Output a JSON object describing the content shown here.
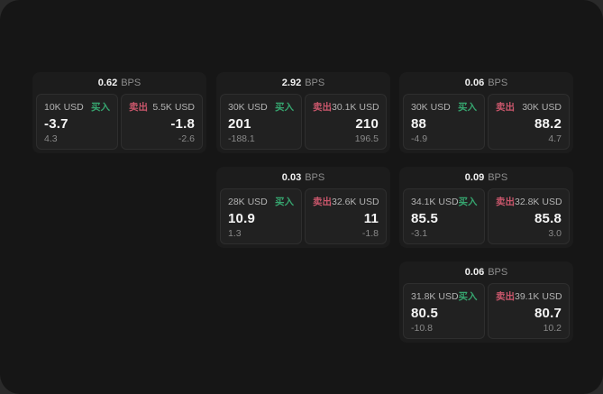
{
  "labels": {
    "bps_unit": "BPS",
    "buy": "买入",
    "sell": "卖出"
  },
  "colors": {
    "buy_green": "#36a56f",
    "sell_red": "#c9566b",
    "window_bg": "#161616",
    "card_bg": "#1c1c1c",
    "panel_bg": "#212121"
  },
  "cards": [
    {
      "bps": "0.62",
      "buy": {
        "amount": "10K USD",
        "price": "-3.7",
        "sub": "4.3"
      },
      "sell": {
        "amount": "5.5K USD",
        "price": "-1.8",
        "sub": "-2.6"
      }
    },
    {
      "bps": "2.92",
      "buy": {
        "amount": "30K USD",
        "price": "201",
        "sub": "-188.1"
      },
      "sell": {
        "amount": "30.1K USD",
        "price": "210",
        "sub": "196.5"
      }
    },
    {
      "bps": "0.06",
      "buy": {
        "amount": "30K USD",
        "price": "88",
        "sub": "-4.9"
      },
      "sell": {
        "amount": "30K USD",
        "price": "88.2",
        "sub": "4.7"
      }
    },
    {
      "bps": "0.03",
      "buy": {
        "amount": "28K USD",
        "price": "10.9",
        "sub": "1.3"
      },
      "sell": {
        "amount": "32.6K USD",
        "price": "11",
        "sub": "-1.8"
      }
    },
    {
      "bps": "0.09",
      "buy": {
        "amount": "34.1K USD",
        "price": "85.5",
        "sub": "-3.1"
      },
      "sell": {
        "amount": "32.8K USD",
        "price": "85.8",
        "sub": "3.0"
      }
    },
    {
      "bps": "0.06",
      "buy": {
        "amount": "31.8K USD",
        "price": "80.5",
        "sub": "-10.8"
      },
      "sell": {
        "amount": "39.1K USD",
        "price": "80.7",
        "sub": "10.2"
      }
    }
  ]
}
